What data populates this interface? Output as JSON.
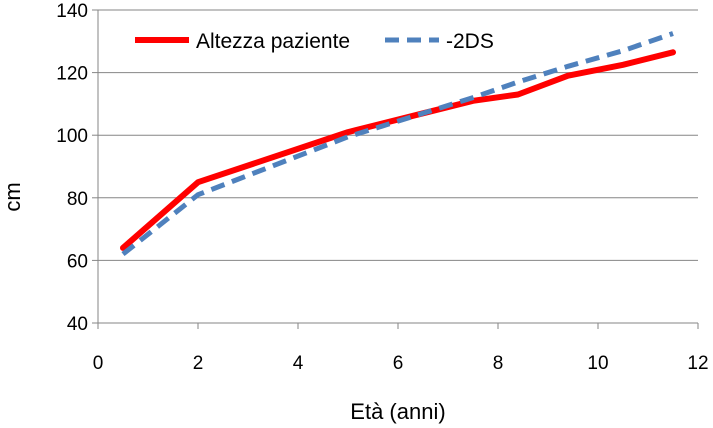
{
  "chart_data": {
    "type": "line",
    "title": "",
    "xlabel": "Età (anni)",
    "ylabel": "cm",
    "xlim": [
      0,
      12
    ],
    "ylim": [
      40,
      140
    ],
    "xticks": [
      0,
      2,
      4,
      6,
      8,
      10,
      12
    ],
    "yticks": [
      40,
      60,
      80,
      100,
      120,
      140
    ],
    "grid": "horizontal",
    "legend_position": "top-left",
    "series": [
      {
        "name": "Altezza paziente",
        "style": "solid",
        "color": "#ff0000",
        "x": [
          0.5,
          2,
          5,
          6.5,
          7.5,
          8.4,
          9.4,
          10.5,
          11.5
        ],
        "y": [
          64,
          85,
          101,
          107,
          111,
          113,
          119,
          122.5,
          126.5
        ]
      },
      {
        "name": "-2DS",
        "style": "dashed",
        "color": "#4f81bd",
        "x": [
          0.5,
          2,
          5,
          6.5,
          7.5,
          8.4,
          9.4,
          10.5,
          11.5
        ],
        "y": [
          62,
          81,
          99.5,
          107,
          112,
          117,
          122,
          127,
          132.5
        ]
      }
    ]
  }
}
